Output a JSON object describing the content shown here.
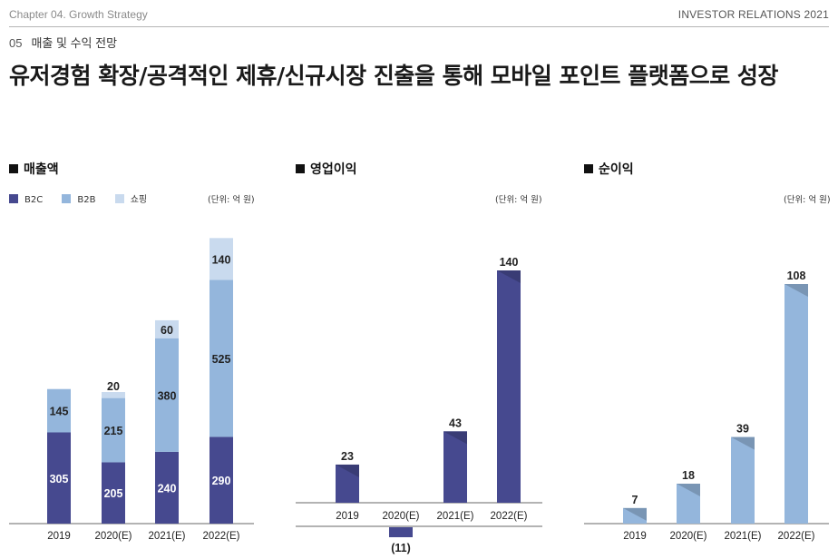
{
  "header": {
    "chapter": "Chapter 04. Growth Strategy",
    "brand": "INVESTOR RELATIONS 2021"
  },
  "section": {
    "number": "05",
    "title": "매출 및 수익 전망"
  },
  "headline": "유저경험 확장/공격적인 제휴/신규시장 진출을 통해 모바일 포인트 플랫폼으로 성장",
  "colors": {
    "b2c": "#46498f",
    "b2b": "#94b6dc",
    "shopping": "#c9daee",
    "value_label_light": "#ffffff",
    "value_label_dark": "#222222"
  },
  "chart_data": [
    {
      "type": "bar",
      "stacked": true,
      "title": "매출액",
      "unit": "(단위: 억 원)",
      "categories": [
        "2019",
        "2020(E)",
        "2021(E)",
        "2022(E)"
      ],
      "series": [
        {
          "name": "B2C",
          "values": [
            305,
            205,
            240,
            290
          ]
        },
        {
          "name": "B2B",
          "values": [
            145,
            215,
            380,
            525
          ]
        },
        {
          "name": "쇼핑",
          "values": [
            null,
            20,
            60,
            140
          ]
        }
      ],
      "legend": "top-left"
    },
    {
      "type": "bar",
      "title": "영업이익",
      "unit": "(단위: 억 원)",
      "categories": [
        "2019",
        "2020(E)",
        "2021(E)",
        "2022(E)"
      ],
      "series": [
        {
          "values": [
            23,
            -11,
            43,
            140
          ],
          "labels": [
            "23",
            "(11)",
            "43",
            "140"
          ]
        }
      ]
    },
    {
      "type": "bar",
      "title": "순이익",
      "unit": "(단위: 억 원)",
      "categories": [
        "2019",
        "2020(E)",
        "2021(E)",
        "2022(E)"
      ],
      "series": [
        {
          "values": [
            7,
            18,
            39,
            108
          ]
        }
      ]
    }
  ]
}
